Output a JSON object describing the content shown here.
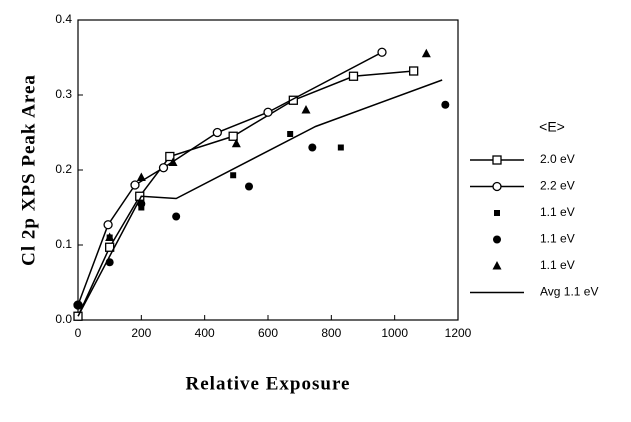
{
  "chart_data": {
    "type": "scatter",
    "y_label": "Cl 2p XPS Peak Area",
    "x_label": "Relative Exposure",
    "legend_title": "<E>",
    "xlim": [
      0,
      1200
    ],
    "xticks": [
      0,
      200,
      400,
      600,
      800,
      1000,
      1200
    ],
    "ylim": [
      0,
      0.4
    ],
    "yticks": [
      {
        "value": 0,
        "label": "0.0"
      },
      0.1,
      0.2,
      0.3,
      0.4
    ],
    "legend": "right",
    "series": [
      {
        "name": "2.0 eV",
        "color": "#000000",
        "marker": "square-open",
        "line": true,
        "x": [
          0,
          100,
          195,
          290,
          490,
          680,
          870,
          1060
        ],
        "values": [
          0.005,
          0.097,
          0.165,
          0.218,
          0.245,
          0.293,
          0.325,
          0.332
        ]
      },
      {
        "name": "2.2 eV",
        "color": "#000000",
        "marker": "circle-open",
        "line": true,
        "x": [
          0,
          95,
          180,
          270,
          440,
          600,
          960
        ],
        "values": [
          0.02,
          0.127,
          0.18,
          0.203,
          0.25,
          0.277,
          0.357
        ]
      },
      {
        "name": "1.1 eV",
        "color": "#000000",
        "marker": "square",
        "line": false,
        "x": [
          100,
          200,
          490,
          670,
          830
        ],
        "values": [
          0.11,
          0.15,
          0.193,
          0.248,
          0.23
        ]
      },
      {
        "name": "1.1 eV",
        "color": "#000000",
        "marker": "circle",
        "line": false,
        "x": [
          0,
          100,
          200,
          310,
          540,
          740,
          1160
        ],
        "values": [
          0.02,
          0.077,
          0.155,
          0.138,
          0.178,
          0.23,
          0.287
        ]
      },
      {
        "name": "1.1 eV",
        "color": "#000000",
        "marker": "triangle",
        "line": false,
        "x": [
          100,
          200,
          300,
          500,
          720,
          1100
        ],
        "values": [
          0.11,
          0.19,
          0.21,
          0.235,
          0.28,
          0.355
        ]
      },
      {
        "name": "Avg 1.1 eV",
        "color": "#000000",
        "marker": "none",
        "line": true,
        "x": [
          0,
          200,
          310,
          750,
          1150
        ],
        "values": [
          0.005,
          0.165,
          0.162,
          0.258,
          0.32
        ]
      }
    ]
  }
}
